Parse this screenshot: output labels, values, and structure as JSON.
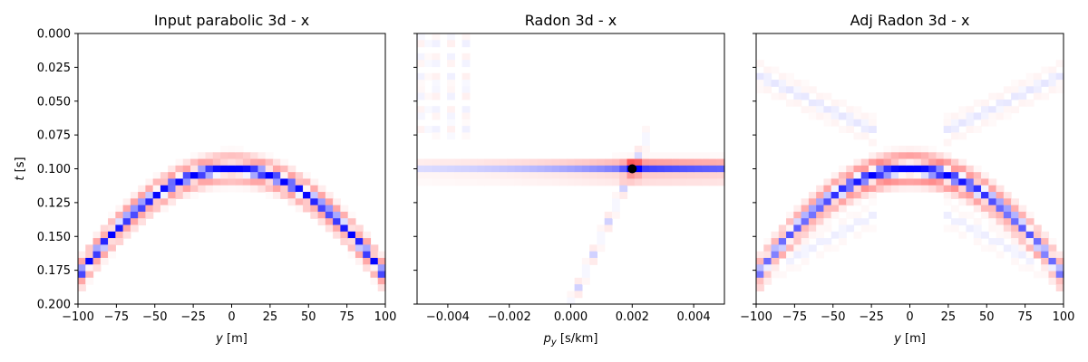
{
  "figure": {
    "ylabel": "t [s]"
  },
  "chart_data": [
    {
      "type": "heatmap",
      "title": "Input parabolic 3d - x",
      "xlabel": "y [m]",
      "ylabel": "t [s]",
      "xlim": [
        -100,
        100
      ],
      "ylim": [
        0.2,
        0.0
      ],
      "xticks": [
        "−100",
        "−75",
        "−50",
        "−25",
        "0",
        "25",
        "50",
        "75",
        "100"
      ],
      "xtick_values": [
        -100,
        -75,
        -50,
        -25,
        0,
        25,
        50,
        75,
        100
      ],
      "yticks": [
        "0.000",
        "0.025",
        "0.050",
        "0.075",
        "0.100",
        "0.125",
        "0.150",
        "0.175",
        "0.200"
      ],
      "ytick_values": [
        0,
        0.025,
        0.05,
        0.075,
        0.1,
        0.125,
        0.15,
        0.175,
        0.2
      ],
      "colormap": "bwr",
      "event": {
        "shape": "parabola",
        "t0": 0.1,
        "t_at_x100": 0.18,
        "wavelet": "ricker",
        "trough": "blue",
        "sidelobes": "red"
      }
    },
    {
      "type": "heatmap",
      "title": "Radon 3d - x",
      "xlabel": "p_y [s/km]",
      "xlim": [
        -0.005,
        0.005
      ],
      "ylim": [
        0.2,
        0.0
      ],
      "xticks": [
        "−0.004",
        "−0.002",
        "0.000",
        "0.002",
        "0.004"
      ],
      "xtick_values": [
        -0.004,
        -0.002,
        0,
        0.002,
        0.004
      ],
      "colormap": "bwr",
      "marker": {
        "x": 0.002,
        "y": 0.1,
        "color": "#000000"
      }
    },
    {
      "type": "heatmap",
      "title": "Adj Radon 3d - x",
      "xlabel": "y [m]",
      "xlim": [
        -100,
        100
      ],
      "ylim": [
        0.2,
        0.0
      ],
      "xticks": [
        "−100",
        "−75",
        "−50",
        "−25",
        "0",
        "25",
        "50",
        "75",
        "100"
      ],
      "xtick_values": [
        -100,
        -75,
        -50,
        -25,
        0,
        25,
        50,
        75,
        100
      ],
      "colormap": "bwr"
    }
  ],
  "colors": {
    "blue": "#0000ff",
    "red": "#ff0000",
    "white": "#ffffff"
  }
}
